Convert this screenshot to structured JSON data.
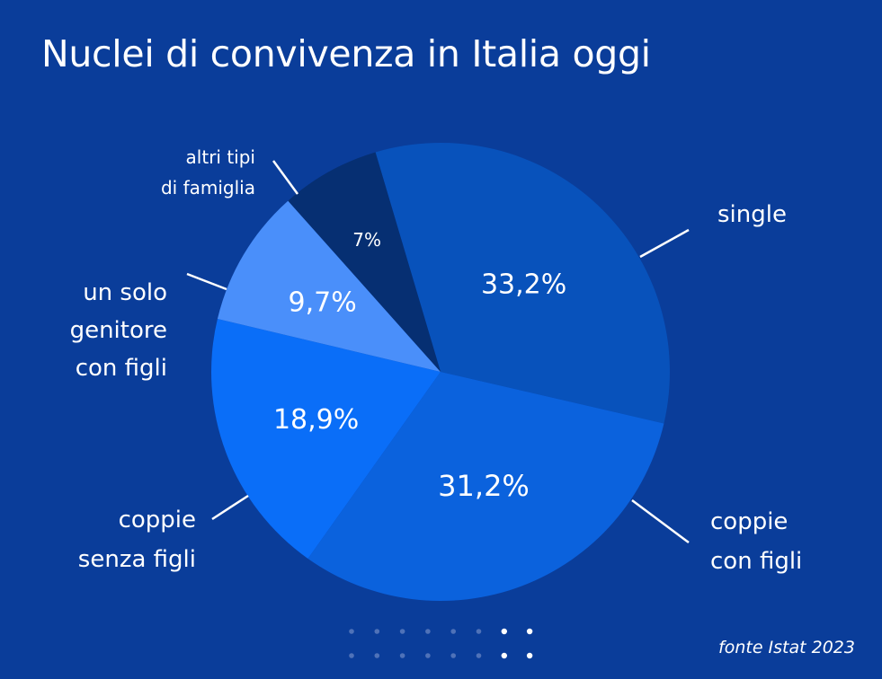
{
  "title": "Nuclei di convivenza in Italia oggi",
  "source": "fonte Istat 2023",
  "chart_data": {
    "type": "pie",
    "title": "Nuclei di convivenza in Italia oggi",
    "slices": [
      {
        "label": [
          "single"
        ],
        "value": 33.2,
        "display": "33,2%",
        "color": "#0852bb"
      },
      {
        "label": [
          "coppie",
          "con figli"
        ],
        "value": 31.2,
        "display": "31,2%",
        "color": "#0b62dd"
      },
      {
        "label": [
          "coppie",
          "senza figli"
        ],
        "value": 18.9,
        "display": "18,9%",
        "color": "#0a6ef8"
      },
      {
        "label": [
          "un solo",
          "genitore",
          "con figli"
        ],
        "value": 9.7,
        "display": "9,7%",
        "color": "#4a8ffa"
      },
      {
        "label": [
          "altri tipi",
          "di famiglia"
        ],
        "value": 7,
        "display": "7%",
        "color": "#062f72"
      }
    ]
  },
  "colors": {
    "background": "#0a3d9a",
    "dots": "#4f72b8",
    "dots_highlight": "#ffffff"
  },
  "page_indicator": {
    "total_columns": 8,
    "active_columns": [
      7,
      8
    ]
  }
}
